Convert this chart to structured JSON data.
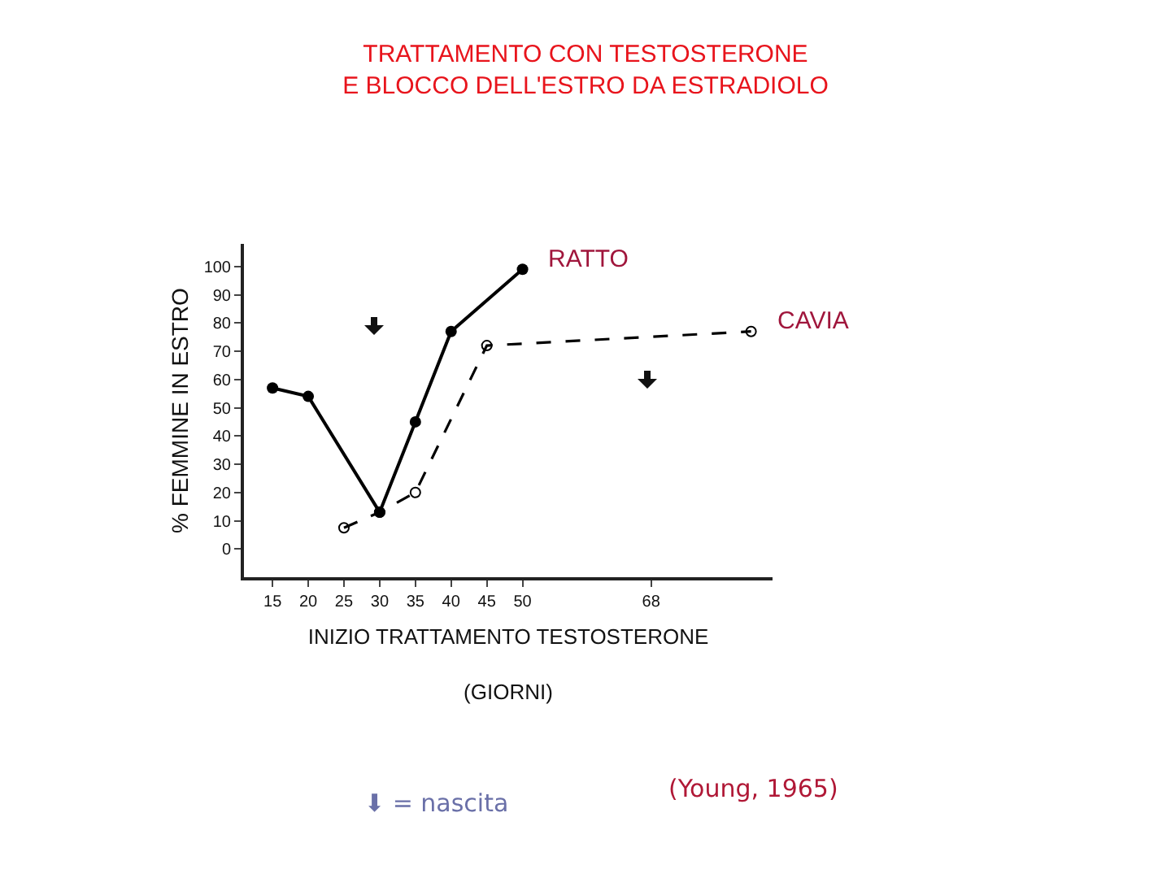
{
  "chart_data": {
    "type": "line",
    "title": "TRATTAMENTO CON TESTOSTERONE\nE BLOCCO DELL'ESTRO DA ESTRADIOLO",
    "xlabel": "INIZIO TRATTAMENTO TESTOSTERONE\n\n(GIORNI)",
    "ylabel": "% FEMMINE IN ESTRO",
    "series": [
      {
        "name": "RATTO",
        "color": "#000000",
        "line_style": "solid",
        "x": [
          15,
          20,
          30,
          35,
          40,
          50
        ],
        "values": [
          57,
          54,
          13,
          45,
          77,
          99
        ]
      },
      {
        "name": "CAVIA",
        "color": "#000000",
        "line_style": "dashed",
        "x": [
          25,
          30,
          35,
          45,
          82
        ],
        "values": [
          7.5,
          13,
          20,
          72,
          77
        ]
      }
    ],
    "xlim": [
      11,
      85
    ],
    "xticks": [
      15,
      20,
      25,
      30,
      35,
      40,
      45,
      50,
      68
    ],
    "ylim": [
      -10,
      108
    ],
    "yticks": [
      0,
      10,
      20,
      30,
      40,
      50,
      60,
      70,
      80,
      90,
      100
    ],
    "grid": false,
    "legend": false,
    "marker": "circle",
    "annotations": [
      "⬇ = nascita",
      "(Young, 1965)"
    ]
  }
}
